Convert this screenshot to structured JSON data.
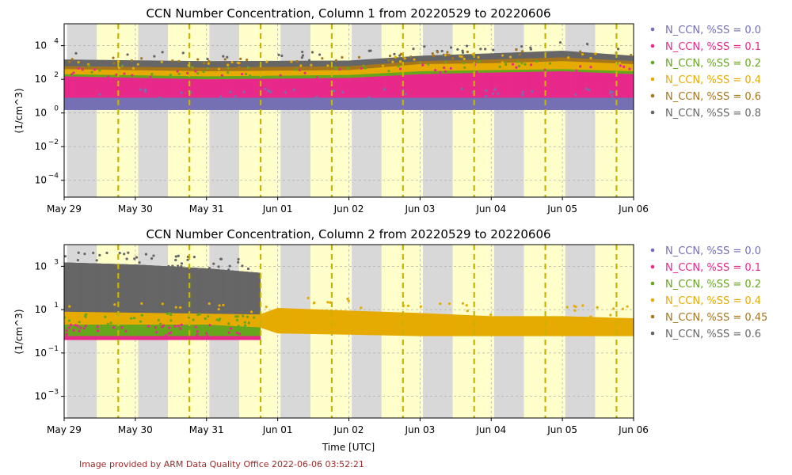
{
  "footer": "Image provided by ARM Data Quality Office 2022-06-06 03:52:21",
  "chart_data": [
    {
      "type": "scatter",
      "title": "CCN Number Concentration, Column 1 from 20220529 to 20220606",
      "ylabel": "(1/cm^3)",
      "xlabel": "",
      "y_scale": "log",
      "ylim": [
        1e-05,
        200000
      ],
      "yticks": [
        0.0001,
        0.01,
        1,
        100,
        10000
      ],
      "ytick_labels": [
        [
          "10",
          "−4"
        ],
        [
          "10",
          "−2"
        ],
        [
          "10",
          "0"
        ],
        [
          "10",
          "2"
        ],
        [
          "10",
          "4"
        ]
      ],
      "xlim": [
        "2022-05-29",
        "2022-06-06"
      ],
      "xtick_labels": [
        "May 29",
        "May 30",
        "May 31",
        "Jun 01",
        "Jun 02",
        "Jun 03",
        "Jun 04",
        "Jun 05",
        "Jun 06"
      ],
      "grid": true,
      "legend_placement": "outside-right",
      "legend": [
        {
          "name": "N_CCN, %SS = 0.0",
          "color": "#7570b3"
        },
        {
          "name": "N_CCN, %SS = 0.1",
          "color": "#e7298a"
        },
        {
          "name": "N_CCN, %SS = 0.2",
          "color": "#66a61e"
        },
        {
          "name": "N_CCN, %SS = 0.4",
          "color": "#e6ab02"
        },
        {
          "name": "N_CCN, %SS = 0.6",
          "color": "#a6761d"
        },
        {
          "name": "N_CCN, %SS = 0.8",
          "color": "#666666"
        }
      ],
      "night_shading_color": "#d8d8d8",
      "day_shading_color": "#ffffcc",
      "solar_noon_line_color": "#c8b400",
      "series_bands": [
        {
          "name": "N_CCN, %SS = 0.8",
          "color": "#666666",
          "x": [
            "2022-05-29",
            "2022-05-31",
            "2022-06-02",
            "2022-06-03",
            "2022-06-04",
            "2022-06-05",
            "2022-06-06"
          ],
          "low": [
            150,
            120,
            130,
            250,
            300,
            400,
            250
          ],
          "high": [
            1500,
            1200,
            1300,
            2500,
            3500,
            5000,
            2500
          ]
        },
        {
          "name": "N_CCN, %SS = 0.6",
          "color": "#a6761d",
          "x": [
            "2022-05-29",
            "2022-05-31",
            "2022-06-02",
            "2022-06-03",
            "2022-06-04",
            "2022-06-05",
            "2022-06-06"
          ],
          "low": [
            80,
            70,
            80,
            150,
            180,
            250,
            150
          ],
          "high": [
            600,
            500,
            600,
            1200,
            1500,
            2000,
            1200
          ]
        },
        {
          "name": "N_CCN, %SS = 0.4",
          "color": "#e6ab02",
          "x": [
            "2022-05-29",
            "2022-05-31",
            "2022-06-02",
            "2022-06-03",
            "2022-06-04",
            "2022-06-05",
            "2022-06-06"
          ],
          "low": [
            50,
            40,
            50,
            100,
            120,
            150,
            100
          ],
          "high": [
            400,
            300,
            350,
            800,
            900,
            1200,
            800
          ]
        },
        {
          "name": "N_CCN, %SS = 0.2",
          "color": "#66a61e",
          "x": [
            "2022-05-29",
            "2022-05-31",
            "2022-06-02",
            "2022-06-03",
            "2022-06-04",
            "2022-06-05",
            "2022-06-06"
          ],
          "low": [
            30,
            25,
            30,
            50,
            60,
            70,
            50
          ],
          "high": [
            200,
            150,
            180,
            300,
            350,
            400,
            300
          ]
        },
        {
          "name": "N_CCN, %SS = 0.1",
          "color": "#e7298a",
          "x": [
            "2022-05-29",
            "2022-05-31",
            "2022-06-02",
            "2022-06-03",
            "2022-06-04",
            "2022-06-05",
            "2022-06-06"
          ],
          "low": [
            3,
            3,
            4,
            5,
            5,
            6,
            5
          ],
          "high": [
            150,
            100,
            120,
            200,
            250,
            300,
            200
          ]
        },
        {
          "name": "N_CCN, %SS = 0.0",
          "color": "#7570b3",
          "x": [
            "2022-05-29",
            "2022-05-31",
            "2022-06-02",
            "2022-06-03",
            "2022-06-04",
            "2022-06-05",
            "2022-06-06"
          ],
          "low": [
            1.5,
            1.5,
            1.5,
            1.5,
            1.5,
            1.5,
            1.5
          ],
          "high": [
            8,
            8,
            8,
            8,
            8,
            8,
            8
          ]
        }
      ]
    },
    {
      "type": "scatter",
      "title": "CCN Number Concentration, Column 2 from 20220529 to 20220606",
      "ylabel": "(1/cm^3)",
      "xlabel": "Time [UTC]",
      "y_scale": "log",
      "ylim": [
        0.0001,
        10000
      ],
      "yticks": [
        0.001,
        0.1,
        10,
        1000
      ],
      "ytick_labels": [
        [
          "10",
          "−3"
        ],
        [
          "10",
          "−1"
        ],
        [
          "10",
          "1"
        ],
        [
          "10",
          "3"
        ]
      ],
      "xlim": [
        "2022-05-29",
        "2022-06-06"
      ],
      "xtick_labels": [
        "May 29",
        "May 30",
        "May 31",
        "Jun 01",
        "Jun 02",
        "Jun 03",
        "Jun 04",
        "Jun 05",
        "Jun 06"
      ],
      "grid": true,
      "legend_placement": "outside-right",
      "legend": [
        {
          "name": "N_CCN, %SS = 0.0",
          "color": "#7570b3"
        },
        {
          "name": "N_CCN, %SS = 0.1",
          "color": "#e7298a"
        },
        {
          "name": "N_CCN, %SS = 0.2",
          "color": "#66a61e"
        },
        {
          "name": "N_CCN, %SS = 0.4",
          "color": "#e6ab02"
        },
        {
          "name": "N_CCN, %SS = 0.45",
          "color": "#a6761d"
        },
        {
          "name": "N_CCN, %SS = 0.6",
          "color": "#666666"
        }
      ],
      "night_shading_color": "#d8d8d8",
      "day_shading_color": "#ffffcc",
      "solar_noon_line_color": "#c8b400",
      "series_bands": [
        {
          "name": "N_CCN, %SS = 0.6",
          "color": "#666666",
          "x": [
            "2022-05-29",
            "2022-05-30",
            "2022-05-31",
            "2022-05-31T18:00"
          ],
          "low": [
            5,
            4,
            3,
            2
          ],
          "high": [
            1500,
            1200,
            800,
            500
          ]
        },
        {
          "name": "N_CCN, %SS = 0.4",
          "color": "#e6ab02",
          "x": [
            "2022-05-29",
            "2022-05-31T18:00",
            "2022-06-01",
            "2022-06-02",
            "2022-06-03",
            "2022-06-04",
            "2022-06-05",
            "2022-06-06"
          ],
          "low": [
            2,
            1.5,
            0.8,
            0.7,
            0.6,
            0.6,
            0.6,
            0.6
          ],
          "high": [
            8,
            6,
            12,
            9,
            7,
            5,
            5,
            4
          ]
        },
        {
          "name": "N_CCN, %SS = 0.2",
          "color": "#66a61e",
          "x": [
            "2022-05-29",
            "2022-05-30",
            "2022-05-31",
            "2022-05-31T18:00"
          ],
          "low": [
            0.6,
            0.6,
            0.6,
            0.6
          ],
          "high": [
            2,
            2,
            2,
            1.5
          ]
        },
        {
          "name": "N_CCN, %SS = 0.1",
          "color": "#e7298a",
          "x": [
            "2022-05-29",
            "2022-05-30",
            "2022-05-31",
            "2022-05-31T18:00"
          ],
          "low": [
            0.4,
            0.4,
            0.4,
            0.4
          ],
          "high": [
            0.6,
            0.6,
            0.6,
            0.6
          ]
        }
      ]
    }
  ]
}
